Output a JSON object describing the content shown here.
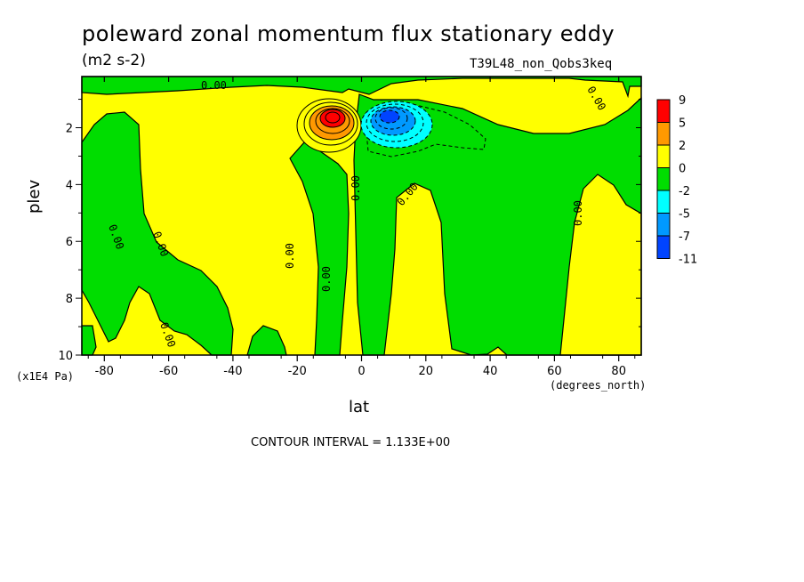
{
  "chart_data": {
    "type": "contour",
    "title": "poleward zonal momentum flux stationary eddy",
    "units": "(m2 s-2)",
    "run_label": "T39L48_non_Qobs3keq",
    "xlabel": "lat",
    "xunits": "(degrees_north)",
    "ylabel": "plev",
    "yunits": "(x1E4 Pa)",
    "xlim": [
      -87,
      87
    ],
    "ylim": [
      10,
      0.2
    ],
    "x_ticks": [
      -80,
      -60,
      -40,
      -20,
      0,
      20,
      40,
      60,
      80
    ],
    "y_ticks": [
      2,
      4,
      6,
      8,
      10
    ],
    "contour_interval_text": "CONTOUR INTERVAL = 1.133E+00",
    "zero_contour_label": "0.00",
    "legend": {
      "placement": "right",
      "levels": [
        "9",
        "5",
        "2",
        "0",
        "-2",
        "-5",
        "-7",
        "-11"
      ],
      "colors": [
        "#ff0000",
        "#ff9900",
        "#ffff00",
        "#00dd00",
        "#00ffff",
        "#0099ff",
        "#0044ff"
      ]
    },
    "features": [
      {
        "type": "max",
        "lat": -10,
        "plev": 1.5,
        "value_range": [
          5,
          9
        ]
      },
      {
        "type": "min",
        "lat": 9,
        "plev": 1.6,
        "value_range": [
          -11,
          -7
        ]
      }
    ]
  }
}
